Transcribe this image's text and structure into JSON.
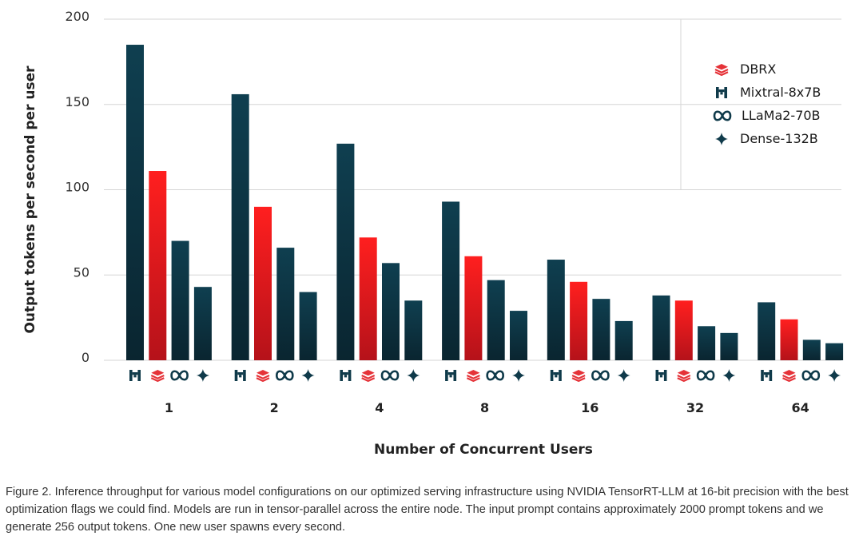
{
  "chart_data": {
    "type": "bar",
    "categories": [
      "1",
      "2",
      "4",
      "8",
      "16",
      "32",
      "64"
    ],
    "series": [
      {
        "name": "Mixtral-8x7B",
        "icon": "mixtral-icon",
        "color": "#0f3a4a",
        "values": [
          185,
          156,
          127,
          93,
          59,
          38,
          34
        ]
      },
      {
        "name": "DBRX",
        "icon": "dbrx-icon",
        "color": "#e11b22",
        "values": [
          111,
          90,
          72,
          61,
          46,
          35,
          24
        ]
      },
      {
        "name": "LLaMa2-70B",
        "icon": "llama-icon",
        "color": "#0f3a4a",
        "values": [
          70,
          66,
          57,
          47,
          36,
          20,
          12
        ]
      },
      {
        "name": "Dense-132B",
        "icon": "dense-icon",
        "color": "#0f3a4a",
        "values": [
          43,
          40,
          35,
          29,
          23,
          16,
          10
        ]
      }
    ],
    "legend_order": [
      "DBRX",
      "Mixtral-8x7B",
      "LLaMa2-70B",
      "Dense-132B"
    ],
    "ylim": [
      0,
      200
    ],
    "yticks": [
      0,
      50,
      100,
      150,
      200
    ],
    "xlabel": "Number of Concurrent Users",
    "ylabel": "Output tokens per second per user",
    "grid": true,
    "legend_placement": "top-right"
  },
  "caption": "Figure 2. Inference throughput for various model configurations on our optimized serving infrastructure using NVIDIA TensorRT-LLM at 16-bit precision with the best optimization flags we could find. Models are run in tensor-parallel across the entire node. The input prompt contains approximately 2000 prompt tokens and we generate 256 output tokens. One new user spawns every second."
}
